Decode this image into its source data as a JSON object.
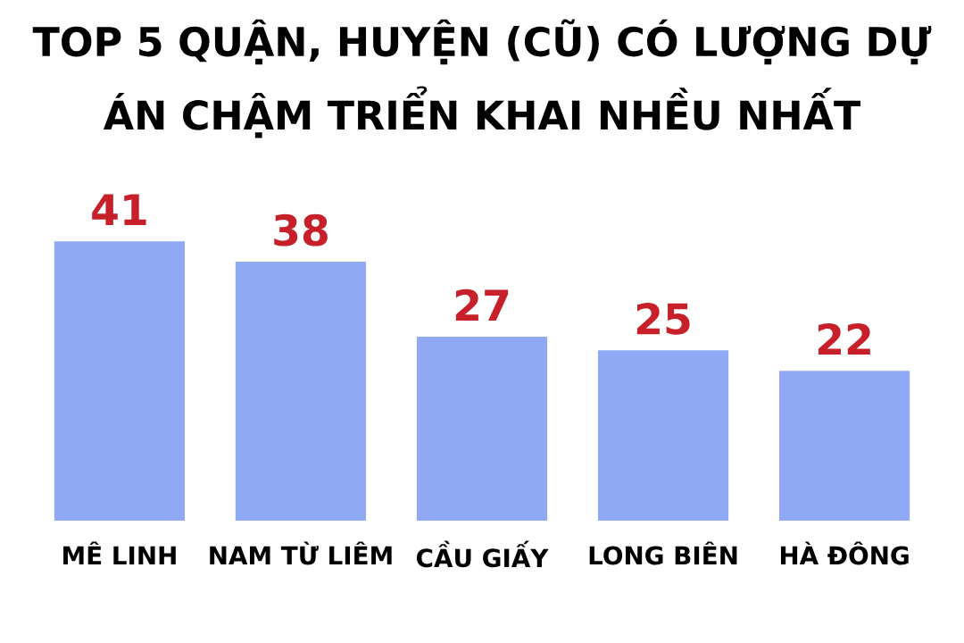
{
  "chart_data": {
    "type": "bar",
    "title": "TOP 5 QUẬN, HUYỆN (CŨ) CÓ LƯỢNG DỰ ÁN CHẬM TRIỂN KHAI NHỀU NHẤT",
    "categories": [
      "MÊ LINH",
      "NAM TỪ LIÊM",
      "CẦU GIẤY",
      "LONG BIÊN",
      "HÀ ĐÔNG"
    ],
    "values": [
      41,
      38,
      27,
      25,
      22
    ],
    "color": "#8fa9f4",
    "data_labels": true,
    "grid": false,
    "legend": false
  }
}
